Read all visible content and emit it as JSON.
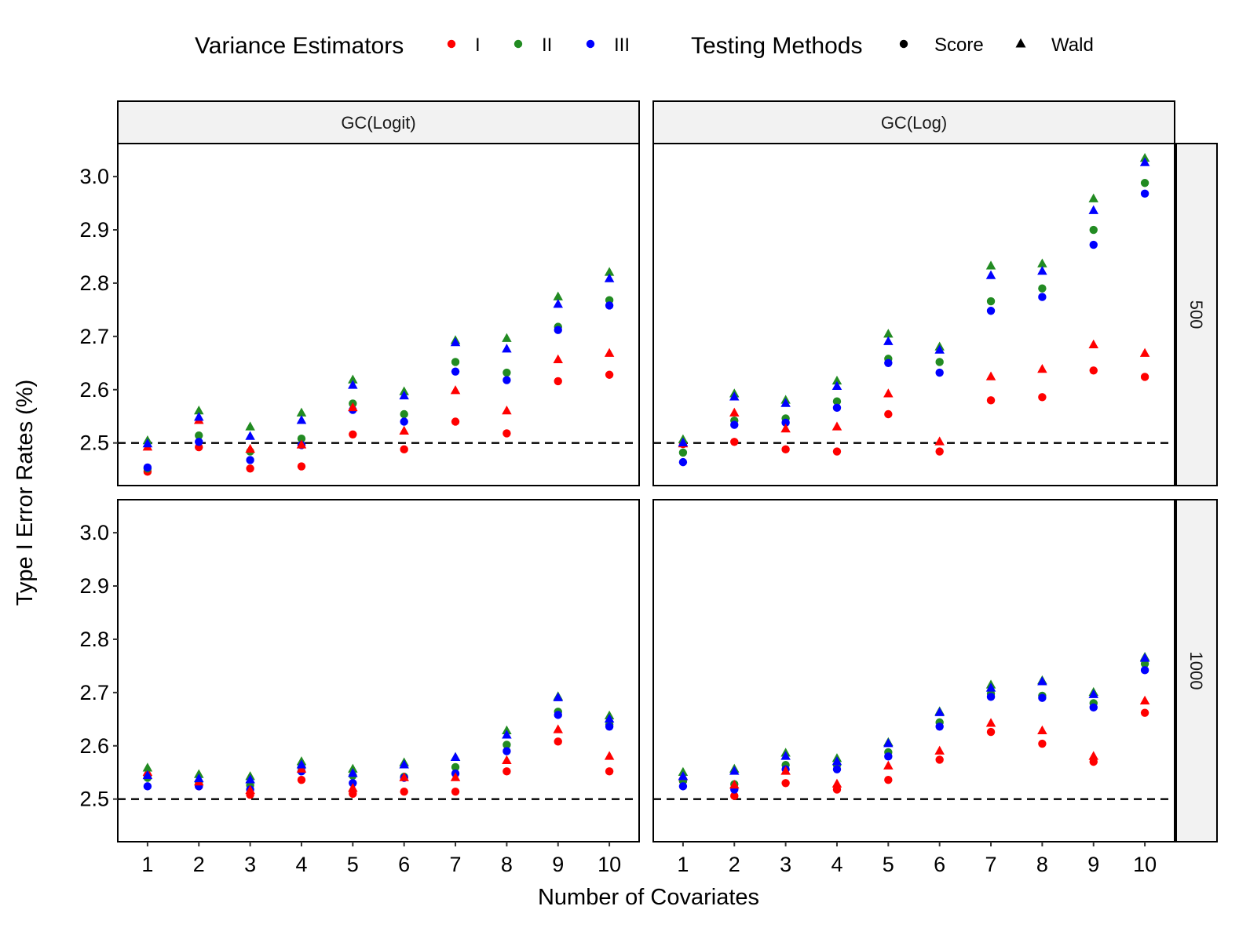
{
  "legend": {
    "color_title": "Variance Estimators",
    "shape_title": "Testing Methods",
    "color_items": [
      {
        "label": "I",
        "color": "#ff0000"
      },
      {
        "label": "II",
        "color": "#228b22"
      },
      {
        "label": "III",
        "color": "#0000ff"
      }
    ],
    "shape_items": [
      {
        "label": "Score",
        "shape": "circle"
      },
      {
        "label": "Wald",
        "shape": "triangle"
      }
    ]
  },
  "axes": {
    "xlabel": "Number of Covariates",
    "ylabel": "Type I Error Rates (%)"
  },
  "chart_data": {
    "type": "scatter",
    "facet_cols": [
      "GC(Logit)",
      "GC(Log)"
    ],
    "facet_rows": [
      "500",
      "1000"
    ],
    "x": [
      1,
      2,
      3,
      4,
      5,
      6,
      7,
      8,
      9,
      10
    ],
    "xticks": [
      1,
      2,
      3,
      4,
      5,
      6,
      7,
      8,
      9,
      10
    ],
    "yticks": [
      2.5,
      2.6,
      2.7,
      2.8,
      2.9,
      3.0
    ],
    "ytick_labels": [
      "2.5",
      "2.6",
      "2.7",
      "2.8",
      "2.9",
      "3.0"
    ],
    "xlim": [
      0.42,
      10.58
    ],
    "ylim": [
      2.42,
      3.062
    ],
    "reference_line": {
      "y": 2.5,
      "style": "dashed"
    },
    "panels": [
      {
        "col": "GC(Logit)",
        "row": "500",
        "series": [
          {
            "estimator": "I",
            "method": "Score",
            "values": [
              2.446,
              2.492,
              2.452,
              2.456,
              2.516,
              2.488,
              2.54,
              2.518,
              2.616,
              2.628
            ]
          },
          {
            "estimator": "I",
            "method": "Wald",
            "values": [
              2.492,
              2.542,
              2.488,
              2.496,
              2.566,
              2.522,
              2.598,
              2.56,
              2.656,
              2.668
            ]
          },
          {
            "estimator": "II",
            "method": "Score",
            "values": [
              2.452,
              2.514,
              2.484,
              2.508,
              2.574,
              2.554,
              2.652,
              2.632,
              2.718,
              2.768
            ]
          },
          {
            "estimator": "II",
            "method": "Wald",
            "values": [
              2.504,
              2.56,
              2.53,
              2.556,
              2.618,
              2.596,
              2.692,
              2.696,
              2.774,
              2.82
            ]
          },
          {
            "estimator": "III",
            "method": "Score",
            "values": [
              2.454,
              2.502,
              2.468,
              2.496,
              2.562,
              2.54,
              2.634,
              2.618,
              2.712,
              2.758
            ]
          },
          {
            "estimator": "III",
            "method": "Wald",
            "values": [
              2.498,
              2.548,
              2.512,
              2.542,
              2.608,
              2.588,
              2.688,
              2.676,
              2.76,
              2.808
            ]
          }
        ]
      },
      {
        "col": "GC(Log)",
        "row": "500",
        "series": [
          {
            "estimator": "I",
            "method": "Score",
            "values": [
              2.498,
              2.502,
              2.488,
              2.484,
              2.554,
              2.484,
              2.58,
              2.586,
              2.636,
              2.624
            ]
          },
          {
            "estimator": "I",
            "method": "Wald",
            "values": [
              2.498,
              2.556,
              2.526,
              2.53,
              2.592,
              2.502,
              2.624,
              2.638,
              2.684,
              2.668
            ]
          },
          {
            "estimator": "II",
            "method": "Score",
            "values": [
              2.482,
              2.542,
              2.546,
              2.578,
              2.658,
              2.652,
              2.766,
              2.79,
              2.9,
              2.988
            ]
          },
          {
            "estimator": "II",
            "method": "Wald",
            "values": [
              2.506,
              2.592,
              2.58,
              2.616,
              2.704,
              2.68,
              2.832,
              2.836,
              2.958,
              3.034
            ]
          },
          {
            "estimator": "III",
            "method": "Score",
            "values": [
              2.464,
              2.534,
              2.538,
              2.566,
              2.65,
              2.632,
              2.748,
              2.774,
              2.872,
              2.968
            ]
          },
          {
            "estimator": "III",
            "method": "Wald",
            "values": [
              2.5,
              2.586,
              2.574,
              2.606,
              2.69,
              2.674,
              2.814,
              2.822,
              2.936,
              3.026
            ]
          }
        ]
      },
      {
        "col": "GC(Logit)",
        "row": "1000",
        "series": [
          {
            "estimator": "I",
            "method": "Score",
            "values": [
              2.542,
              2.524,
              2.508,
              2.536,
              2.51,
              2.514,
              2.514,
              2.552,
              2.608,
              2.552
            ]
          },
          {
            "estimator": "I",
            "method": "Wald",
            "values": [
              2.55,
              2.532,
              2.516,
              2.556,
              2.52,
              2.54,
              2.54,
              2.572,
              2.63,
              2.58
            ]
          },
          {
            "estimator": "II",
            "method": "Score",
            "values": [
              2.54,
              2.532,
              2.526,
              2.56,
              2.544,
              2.542,
              2.56,
              2.602,
              2.664,
              2.64
            ]
          },
          {
            "estimator": "II",
            "method": "Wald",
            "values": [
              2.558,
              2.546,
              2.542,
              2.57,
              2.556,
              2.568,
              2.578,
              2.628,
              2.692,
              2.656
            ]
          },
          {
            "estimator": "III",
            "method": "Score",
            "values": [
              2.524,
              2.524,
              2.518,
              2.552,
              2.53,
              2.54,
              2.548,
              2.59,
              2.658,
              2.636
            ]
          },
          {
            "estimator": "III",
            "method": "Wald",
            "values": [
              2.544,
              2.538,
              2.536,
              2.564,
              2.548,
              2.564,
              2.578,
              2.62,
              2.69,
              2.65
            ]
          }
        ]
      },
      {
        "col": "GC(Log)",
        "row": "1000",
        "series": [
          {
            "estimator": "I",
            "method": "Score",
            "values": [
              2.534,
              2.506,
              2.53,
              2.518,
              2.536,
              2.574,
              2.626,
              2.604,
              2.57,
              2.662
            ]
          },
          {
            "estimator": "I",
            "method": "Wald",
            "values": [
              2.542,
              2.526,
              2.552,
              2.528,
              2.562,
              2.59,
              2.642,
              2.628,
              2.58,
              2.684
            ]
          },
          {
            "estimator": "II",
            "method": "Score",
            "values": [
              2.534,
              2.528,
              2.564,
              2.564,
              2.588,
              2.644,
              2.698,
              2.694,
              2.68,
              2.754
            ]
          },
          {
            "estimator": "II",
            "method": "Wald",
            "values": [
              2.55,
              2.556,
              2.586,
              2.576,
              2.606,
              2.664,
              2.714,
              2.722,
              2.7,
              2.766
            ]
          },
          {
            "estimator": "III",
            "method": "Score",
            "values": [
              2.524,
              2.518,
              2.556,
              2.556,
              2.58,
              2.636,
              2.692,
              2.69,
              2.672,
              2.742
            ]
          },
          {
            "estimator": "III",
            "method": "Wald",
            "values": [
              2.542,
              2.552,
              2.58,
              2.57,
              2.604,
              2.662,
              2.708,
              2.72,
              2.696,
              2.764
            ]
          }
        ]
      }
    ]
  }
}
